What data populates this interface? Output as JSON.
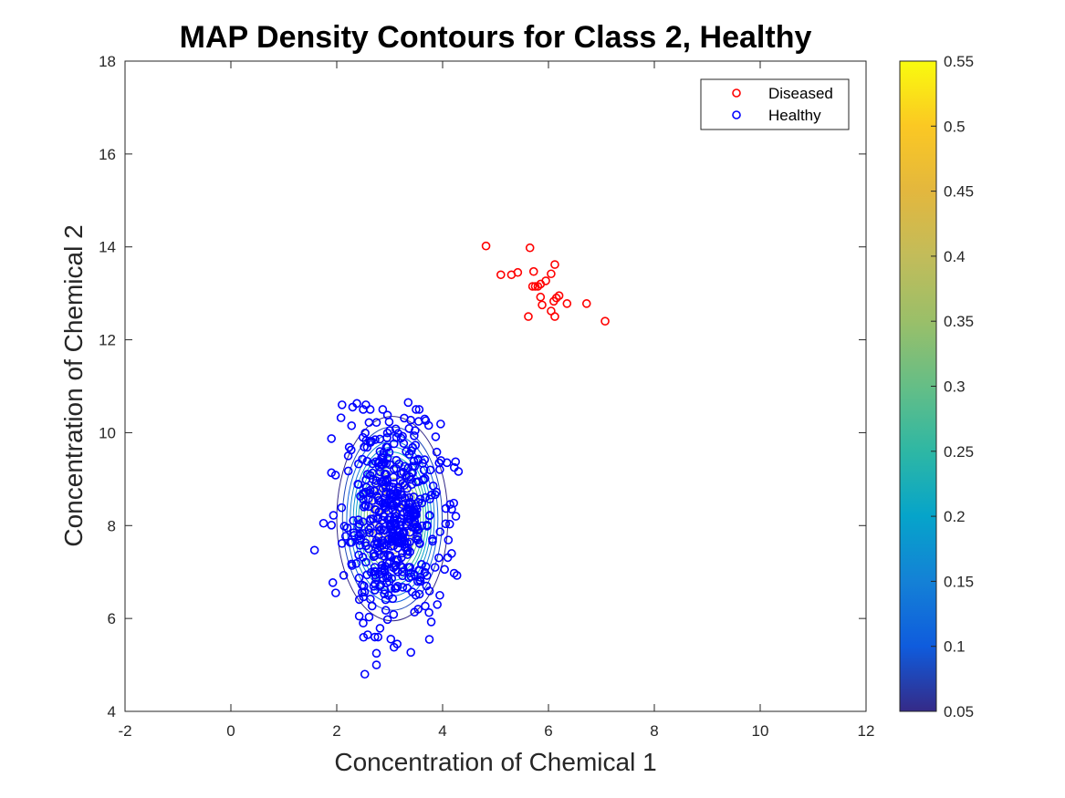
{
  "chart_data": {
    "type": "scatter",
    "title": "MAP Density Contours for Class 2, Healthy",
    "xlabel": "Concentration of Chemical 1",
    "ylabel": "Concentration of Chemical 2",
    "xlim": [
      -2,
      12
    ],
    "ylim": [
      4,
      18
    ],
    "xticks": [
      "-2",
      "0",
      "2",
      "4",
      "6",
      "8",
      "10",
      "12"
    ],
    "yticks": [
      "4",
      "6",
      "8",
      "10",
      "12",
      "14",
      "16",
      "18"
    ],
    "grid": false,
    "legend": {
      "placement": "top-right",
      "entries": [
        "Diseased",
        "Healthy"
      ]
    },
    "series": [
      {
        "name": "Diseased",
        "color": "#ff0000",
        "marker": "circle-open",
        "points": [
          [
            4.82,
            14.02
          ],
          [
            5.65,
            13.98
          ],
          [
            6.12,
            13.62
          ],
          [
            5.72,
            13.47
          ],
          [
            6.05,
            13.42
          ],
          [
            5.1,
            13.4
          ],
          [
            5.3,
            13.4
          ],
          [
            5.42,
            13.45
          ],
          [
            5.95,
            13.27
          ],
          [
            5.85,
            13.2
          ],
          [
            5.7,
            13.15
          ],
          [
            5.75,
            13.15
          ],
          [
            5.8,
            13.15
          ],
          [
            6.2,
            12.95
          ],
          [
            6.15,
            12.9
          ],
          [
            5.85,
            12.92
          ],
          [
            6.1,
            12.83
          ],
          [
            6.35,
            12.78
          ],
          [
            6.72,
            12.78
          ],
          [
            5.88,
            12.75
          ],
          [
            6.05,
            12.62
          ],
          [
            5.62,
            12.5
          ],
          [
            6.12,
            12.5
          ],
          [
            7.07,
            12.4
          ]
        ]
      },
      {
        "name": "Healthy",
        "color": "#0000ff",
        "marker": "circle-open",
        "count": 500,
        "mean": [
          3.05,
          8.15
        ],
        "std": [
          0.45,
          1.05
        ],
        "outliers": [
          [
            2.1,
            10.6
          ],
          [
            2.38,
            10.63
          ],
          [
            2.55,
            10.6
          ],
          [
            3.35,
            10.65
          ],
          [
            2.3,
            10.55
          ],
          [
            2.08,
            10.32
          ],
          [
            2.75,
            10.22
          ],
          [
            2.28,
            10.15
          ],
          [
            1.58,
            7.47
          ],
          [
            1.75,
            8.05
          ],
          [
            2.53,
            4.8
          ],
          [
            2.75,
            5.0
          ],
          [
            2.75,
            5.25
          ],
          [
            3.4,
            5.27
          ],
          [
            2.72,
            5.6
          ],
          [
            2.78,
            5.6
          ],
          [
            3.75,
            5.55
          ],
          [
            4.22,
            9.25
          ],
          [
            4.25,
            8.2
          ],
          [
            4.17,
            7.4
          ],
          [
            2.5,
            5.9
          ],
          [
            1.98,
            6.55
          ],
          [
            3.9,
            6.3
          ]
        ]
      }
    ],
    "contours": {
      "center": [
        3.05,
        8.15
      ],
      "semi_axes": [
        1.05,
        2.2
      ],
      "levels": [
        0.05,
        0.08,
        0.11,
        0.14,
        0.17,
        0.2,
        0.23,
        0.26,
        0.3,
        0.34,
        0.38,
        0.42,
        0.46,
        0.5,
        0.54
      ]
    },
    "colorbar": {
      "range": [
        0.05,
        0.55
      ],
      "ticks": [
        "0.05",
        "0.1",
        "0.15",
        "0.2",
        "0.25",
        "0.3",
        "0.35",
        "0.4",
        "0.45",
        "0.5",
        "0.55"
      ],
      "colormap": "parula"
    }
  }
}
